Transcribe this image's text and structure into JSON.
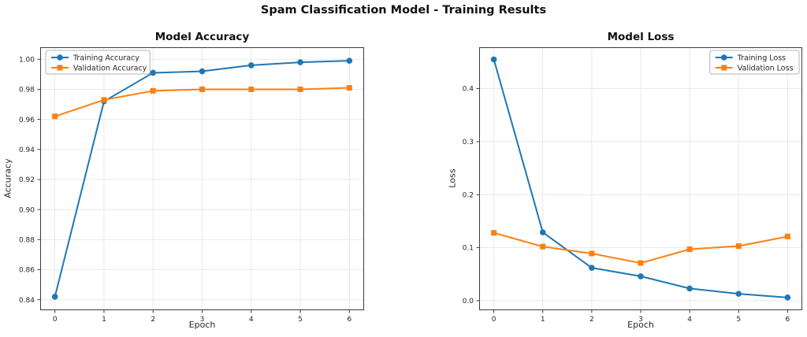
{
  "suptitle": "Spam Classification Model - Training Results",
  "colors": {
    "training_series": "#1f77b4",
    "validation_series": "#ff7f0e",
    "grid": "#e7e7e7",
    "spine": "#3c3c3c",
    "tick_text": "#262626",
    "legend_border": "#b3b3b3",
    "background": "#ffffff"
  },
  "chart_data": [
    {
      "type": "line",
      "title": "Model Accuracy",
      "xlabel": "Epoch",
      "ylabel": "Accuracy",
      "grid": true,
      "legend_position": "upper-left",
      "x": [
        0,
        1,
        2,
        3,
        4,
        5,
        6
      ],
      "xlim": [
        -0.3,
        6.3
      ],
      "ylim": [
        0.833,
        1.008
      ],
      "xticks": {
        "values": [
          0,
          1,
          2,
          3,
          4,
          5,
          6
        ],
        "labels": [
          "0",
          "1",
          "2",
          "3",
          "4",
          "5",
          "6"
        ]
      },
      "yticks": {
        "values": [
          0.84,
          0.86,
          0.88,
          0.9,
          0.92,
          0.94,
          0.96,
          0.98,
          1.0
        ],
        "labels": [
          "0.84",
          "0.86",
          "0.88",
          "0.90",
          "0.92",
          "0.94",
          "0.96",
          "0.98",
          "1.00"
        ]
      },
      "series": [
        {
          "name": "Training Accuracy",
          "color": "#1f77b4",
          "marker": "circle",
          "values": [
            0.842,
            0.972,
            0.991,
            0.992,
            0.996,
            0.998,
            0.999
          ]
        },
        {
          "name": "Validation Accuracy",
          "color": "#ff7f0e",
          "marker": "square",
          "values": [
            0.962,
            0.973,
            0.979,
            0.98,
            0.98,
            0.98,
            0.981
          ]
        }
      ]
    },
    {
      "type": "line",
      "title": "Model Loss",
      "xlabel": "Epoch",
      "ylabel": "Loss",
      "grid": true,
      "legend_position": "upper-right",
      "x": [
        0,
        1,
        2,
        3,
        4,
        5,
        6
      ],
      "xlim": [
        -0.3,
        6.3
      ],
      "ylim": [
        -0.018,
        0.478
      ],
      "xticks": {
        "values": [
          0,
          1,
          2,
          3,
          4,
          5,
          6
        ],
        "labels": [
          "0",
          "1",
          "2",
          "3",
          "4",
          "5",
          "6"
        ]
      },
      "yticks": {
        "values": [
          0.0,
          0.1,
          0.2,
          0.3,
          0.4
        ],
        "labels": [
          "0.0",
          "0.1",
          "0.2",
          "0.3",
          "0.4"
        ]
      },
      "series": [
        {
          "name": "Training Loss",
          "color": "#1f77b4",
          "marker": "circle",
          "values": [
            0.455,
            0.129,
            0.062,
            0.046,
            0.023,
            0.013,
            0.006
          ]
        },
        {
          "name": "Validation Loss",
          "color": "#ff7f0e",
          "marker": "square",
          "values": [
            0.128,
            0.102,
            0.089,
            0.071,
            0.097,
            0.103,
            0.121
          ]
        }
      ]
    }
  ]
}
